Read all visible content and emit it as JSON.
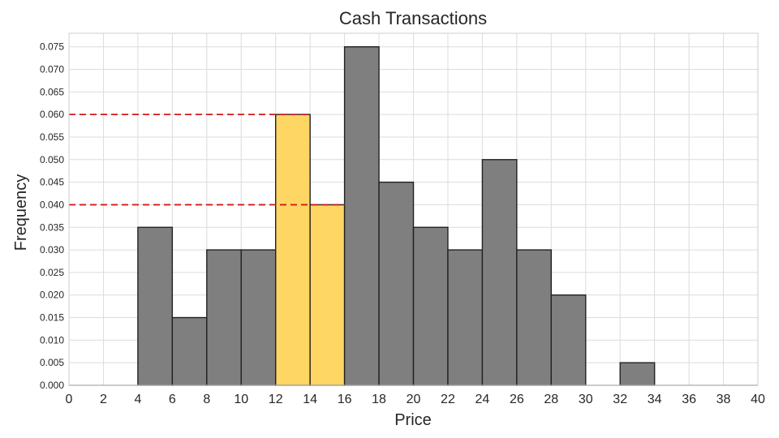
{
  "chart_data": {
    "type": "bar",
    "title": "Cash Transactions",
    "xlabel": "Price",
    "ylabel": "Frequency",
    "xlim": [
      0,
      40
    ],
    "ylim": [
      0,
      0.078
    ],
    "xticks": [
      "0",
      "2",
      "4",
      "6",
      "8",
      "10",
      "12",
      "14",
      "16",
      "18",
      "20",
      "22",
      "24",
      "26",
      "28",
      "30",
      "32",
      "34",
      "36",
      "38",
      "40"
    ],
    "yticks": [
      "0.000",
      "0.005",
      "0.010",
      "0.015",
      "0.020",
      "0.025",
      "0.030",
      "0.035",
      "0.040",
      "0.045",
      "0.050",
      "0.055",
      "0.060",
      "0.065",
      "0.070",
      "0.075"
    ],
    "bin_edges": [
      0,
      2,
      4,
      6,
      8,
      10,
      12,
      14,
      16,
      18,
      20,
      22,
      24,
      26,
      28,
      30,
      32,
      34,
      36,
      38,
      40
    ],
    "values": [
      0,
      0,
      0.035,
      0.015,
      0.03,
      0.03,
      0.06,
      0.04,
      0.075,
      0.045,
      0.035,
      0.03,
      0.05,
      0.03,
      0.02,
      0,
      0.005,
      0,
      0,
      0
    ],
    "highlighted_bins": [
      6,
      7
    ],
    "reference_lines": [
      0.06,
      0.04
    ],
    "grid": true,
    "colors": {
      "bar": "#7f7f7f",
      "highlight": "#fdd663",
      "edge": "#222222",
      "reference": "#d11a1a"
    }
  }
}
